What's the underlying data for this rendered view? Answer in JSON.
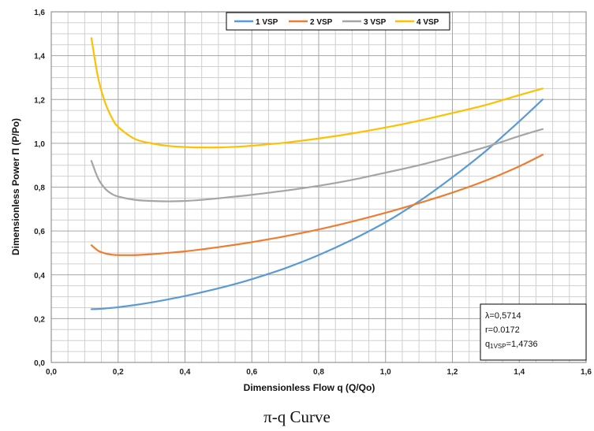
{
  "chart_data": {
    "type": "line",
    "xlabel": "Dimensionless Flow q (Q/Qo)",
    "ylabel": "Dimensionless Power Π (P/Po)",
    "xlim": [
      0,
      1.6
    ],
    "ylim": [
      0,
      1.6
    ],
    "x_ticks": [
      "0,0",
      "0,2",
      "0,4",
      "0,6",
      "0,8",
      "1,0",
      "1,2",
      "1,4",
      "1,6"
    ],
    "y_ticks": [
      "0,0",
      "0,2",
      "0,4",
      "0,6",
      "0,8",
      "1,0",
      "1,2",
      "1,4",
      "1,6"
    ],
    "grid": true,
    "legend_position": "top",
    "x": [
      0.12,
      0.14,
      0.16,
      0.18,
      0.2,
      0.25,
      0.3,
      0.35,
      0.4,
      0.45,
      0.5,
      0.55,
      0.6,
      0.7,
      0.8,
      0.9,
      1.0,
      1.1,
      1.2,
      1.3,
      1.4,
      1.47
    ],
    "series": [
      {
        "name": "1 VSP",
        "color": "#5B9BD5",
        "values": [
          0.243,
          0.244,
          0.246,
          0.249,
          0.252,
          0.262,
          0.274,
          0.288,
          0.303,
          0.32,
          0.338,
          0.358,
          0.38,
          0.43,
          0.49,
          0.56,
          0.64,
          0.735,
          0.845,
          0.965,
          1.1,
          1.2
        ]
      },
      {
        "name": "2 VSP",
        "color": "#ED7D31",
        "values": [
          0.535,
          0.51,
          0.498,
          0.492,
          0.49,
          0.49,
          0.494,
          0.5,
          0.507,
          0.516,
          0.526,
          0.537,
          0.549,
          0.576,
          0.607,
          0.643,
          0.683,
          0.727,
          0.775,
          0.83,
          0.895,
          0.948
        ]
      },
      {
        "name": "3 VSP",
        "color": "#A5A5A5",
        "values": [
          0.92,
          0.84,
          0.795,
          0.77,
          0.757,
          0.742,
          0.737,
          0.735,
          0.737,
          0.742,
          0.749,
          0.757,
          0.765,
          0.784,
          0.806,
          0.833,
          0.866,
          0.9,
          0.94,
          0.983,
          1.033,
          1.065
        ]
      },
      {
        "name": "4 VSP",
        "color": "#FFC000",
        "values": [
          1.48,
          1.3,
          1.19,
          1.12,
          1.075,
          1.02,
          1.0,
          0.988,
          0.983,
          0.981,
          0.981,
          0.984,
          0.989,
          1.003,
          1.022,
          1.045,
          1.072,
          1.103,
          1.138,
          1.175,
          1.22,
          1.25
        ]
      }
    ],
    "annotation": {
      "lambda": "λ=0,5714",
      "r": "r=0.0172",
      "q_prefix": "q",
      "q_sub": "1VSP",
      "q_value": "=1,4736"
    }
  },
  "caption": "π-q Curve"
}
